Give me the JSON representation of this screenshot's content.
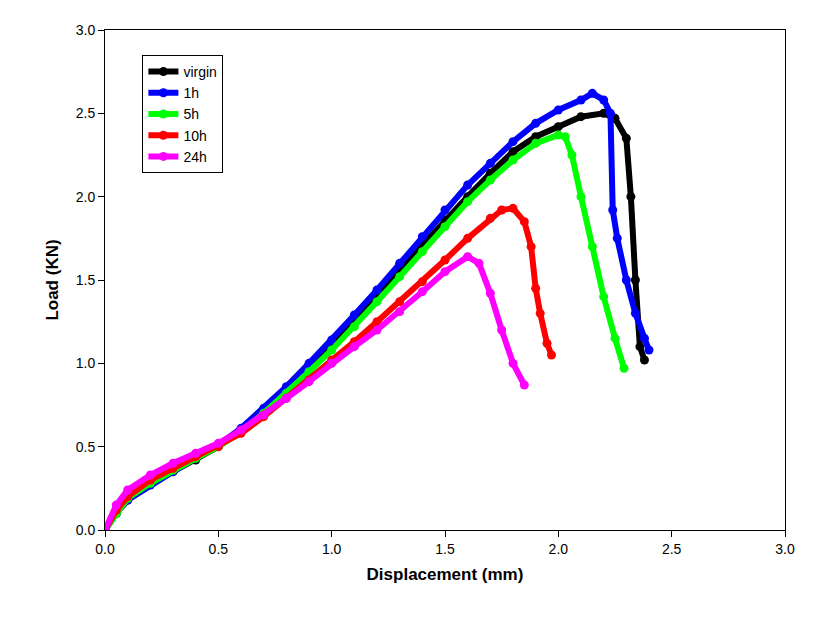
{
  "chart_data": {
    "type": "scatter",
    "x_label": "Displacement (mm)",
    "y_label": "Load (KN)",
    "xlim": [
      0,
      3
    ],
    "ylim": [
      0,
      3
    ],
    "xticks": [
      {
        "value": 0,
        "label": "0.0"
      },
      0.5,
      {
        "value": 1,
        "label": "1.0"
      },
      1.5,
      {
        "value": 2,
        "label": "2.0"
      },
      2.5,
      {
        "value": 3,
        "label": "3.0"
      }
    ],
    "yticks": [
      {
        "value": 0,
        "label": "0.0"
      },
      0.5,
      {
        "value": 1,
        "label": "1.0"
      },
      1.5,
      {
        "value": 2,
        "label": "2.0"
      },
      2.5,
      {
        "value": 3,
        "label": "3.0"
      }
    ],
    "grid": false,
    "legend": "upper left",
    "marker": "circle",
    "line_style": "solid",
    "series": [
      {
        "name": "virgin",
        "color": "#000000",
        "x": [
          0,
          0.05,
          0.1,
          0.2,
          0.3,
          0.4,
          0.5,
          0.6,
          0.7,
          0.8,
          0.9,
          1.0,
          1.1,
          1.2,
          1.3,
          1.4,
          1.5,
          1.6,
          1.7,
          1.8,
          1.9,
          2.0,
          2.1,
          2.2,
          2.25,
          2.3,
          2.32,
          2.34,
          2.36,
          2.38
        ],
        "values": [
          0,
          0.1,
          0.18,
          0.28,
          0.35,
          0.42,
          0.5,
          0.6,
          0.72,
          0.85,
          0.98,
          1.12,
          1.26,
          1.41,
          1.56,
          1.71,
          1.86,
          2.0,
          2.14,
          2.27,
          2.36,
          2.42,
          2.48,
          2.5,
          2.47,
          2.35,
          2.0,
          1.5,
          1.1,
          1.02
        ]
      },
      {
        "name": "1h",
        "color": "#0000ff",
        "x": [
          0,
          0.05,
          0.1,
          0.2,
          0.3,
          0.4,
          0.5,
          0.6,
          0.7,
          0.8,
          0.9,
          1.0,
          1.1,
          1.2,
          1.3,
          1.4,
          1.5,
          1.6,
          1.7,
          1.8,
          1.9,
          2.0,
          2.1,
          2.15,
          2.2,
          2.23,
          2.24,
          2.26,
          2.3,
          2.34,
          2.38,
          2.4
        ],
        "values": [
          0,
          0.1,
          0.18,
          0.27,
          0.35,
          0.43,
          0.51,
          0.61,
          0.73,
          0.86,
          1.0,
          1.14,
          1.29,
          1.44,
          1.6,
          1.76,
          1.92,
          2.07,
          2.2,
          2.33,
          2.44,
          2.52,
          2.58,
          2.62,
          2.58,
          2.5,
          1.92,
          1.75,
          1.5,
          1.3,
          1.15,
          1.08
        ]
      },
      {
        "name": "5h",
        "color": "#00ff00",
        "x": [
          0,
          0.05,
          0.1,
          0.2,
          0.3,
          0.4,
          0.5,
          0.6,
          0.7,
          0.8,
          0.9,
          1.0,
          1.1,
          1.2,
          1.3,
          1.4,
          1.5,
          1.6,
          1.7,
          1.8,
          1.9,
          2.0,
          2.03,
          2.06,
          2.1,
          2.15,
          2.2,
          2.25,
          2.29
        ],
        "values": [
          0,
          0.1,
          0.19,
          0.28,
          0.36,
          0.43,
          0.5,
          0.59,
          0.7,
          0.82,
          0.95,
          1.08,
          1.22,
          1.37,
          1.52,
          1.67,
          1.82,
          1.97,
          2.1,
          2.22,
          2.32,
          2.37,
          2.36,
          2.25,
          2.0,
          1.7,
          1.4,
          1.15,
          0.97
        ]
      },
      {
        "name": "10h",
        "color": "#ff0000",
        "x": [
          0,
          0.05,
          0.1,
          0.2,
          0.3,
          0.4,
          0.5,
          0.6,
          0.7,
          0.8,
          0.9,
          1.0,
          1.1,
          1.2,
          1.3,
          1.4,
          1.5,
          1.6,
          1.7,
          1.75,
          1.8,
          1.85,
          1.88,
          1.9,
          1.92,
          1.95,
          1.97
        ],
        "values": [
          0,
          0.12,
          0.2,
          0.3,
          0.37,
          0.44,
          0.5,
          0.58,
          0.68,
          0.79,
          0.9,
          1.02,
          1.13,
          1.25,
          1.37,
          1.49,
          1.62,
          1.75,
          1.87,
          1.92,
          1.93,
          1.85,
          1.7,
          1.45,
          1.3,
          1.12,
          1.05
        ]
      },
      {
        "name": "24h",
        "color": "#ff00ff",
        "x": [
          0,
          0.05,
          0.1,
          0.2,
          0.3,
          0.4,
          0.5,
          0.6,
          0.7,
          0.8,
          0.9,
          1.0,
          1.1,
          1.2,
          1.3,
          1.4,
          1.5,
          1.6,
          1.65,
          1.7,
          1.75,
          1.8,
          1.85
        ],
        "values": [
          0,
          0.15,
          0.24,
          0.33,
          0.4,
          0.46,
          0.52,
          0.6,
          0.69,
          0.79,
          0.89,
          1.0,
          1.1,
          1.2,
          1.31,
          1.43,
          1.55,
          1.64,
          1.6,
          1.42,
          1.2,
          1.0,
          0.87
        ]
      }
    ]
  }
}
